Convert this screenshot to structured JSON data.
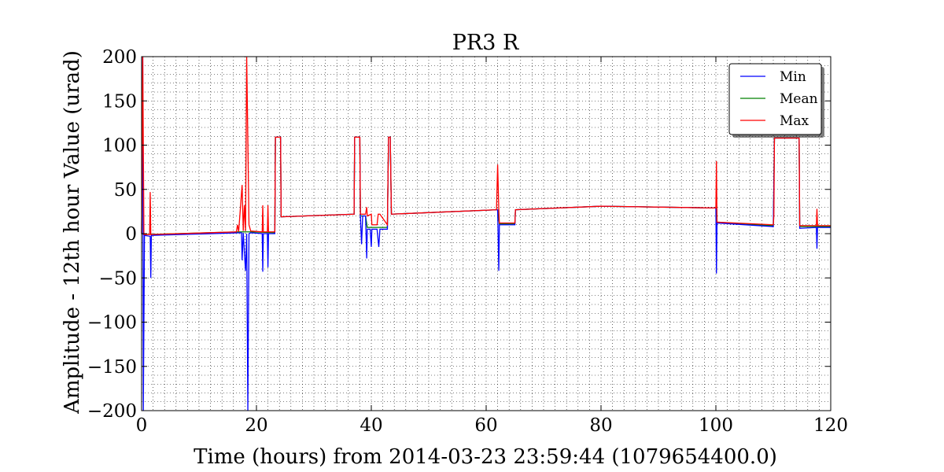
{
  "chart_data": {
    "type": "line",
    "title": "PR3 R",
    "xlabel": "Time (hours) from 2014-03-23 23:59:44 (1079654400.0)",
    "ylabel": "Amplitude - 12th hour Value (urad)",
    "xlim": [
      0,
      120
    ],
    "ylim": [
      -200,
      200
    ],
    "xticks": [
      0,
      20,
      40,
      60,
      80,
      100,
      120
    ],
    "yticks": [
      -200,
      -150,
      -100,
      -50,
      0,
      50,
      100,
      150,
      200
    ],
    "xtick_labels": [
      "0",
      "20",
      "40",
      "60",
      "80",
      "100",
      "120"
    ],
    "ytick_labels": [
      "−200",
      "−150",
      "−100",
      "−50",
      "0",
      "50",
      "100",
      "150",
      "200"
    ],
    "grid": true,
    "legend_position": "top-right",
    "series": [
      {
        "name": "Min",
        "color": "#0000ff",
        "points": [
          [
            0,
            0
          ],
          [
            0.2,
            200
          ],
          [
            0.3,
            -200
          ],
          [
            0.5,
            -2
          ],
          [
            1.5,
            -3
          ],
          [
            1.6,
            -50
          ],
          [
            1.7,
            -2
          ],
          [
            17.4,
            1
          ],
          [
            17.5,
            -30
          ],
          [
            17.7,
            1
          ],
          [
            17.9,
            -22
          ],
          [
            18.1,
            -42
          ],
          [
            18.3,
            0
          ],
          [
            18.5,
            -200
          ],
          [
            18.7,
            0
          ],
          [
            19,
            1
          ],
          [
            21,
            0
          ],
          [
            21.1,
            -43
          ],
          [
            21.2,
            0
          ],
          [
            21.9,
            0
          ],
          [
            22,
            -38
          ],
          [
            22.1,
            0
          ],
          [
            23.2,
            0
          ],
          [
            23.3,
            109
          ],
          [
            24.2,
            109
          ],
          [
            24.3,
            19
          ],
          [
            37,
            22
          ],
          [
            37.1,
            109
          ],
          [
            38,
            109
          ],
          [
            38.1,
            20
          ],
          [
            38.3,
            -12
          ],
          [
            38.5,
            20
          ],
          [
            39,
            20
          ],
          [
            39.2,
            -28
          ],
          [
            39.3,
            5
          ],
          [
            39.8,
            5
          ],
          [
            40,
            -15
          ],
          [
            40.1,
            5
          ],
          [
            41,
            5
          ],
          [
            41.3,
            -15
          ],
          [
            41.5,
            5
          ],
          [
            42.8,
            5
          ],
          [
            43,
            109
          ],
          [
            43.3,
            109
          ],
          [
            43.5,
            22
          ],
          [
            62,
            27
          ],
          [
            62.2,
            -42
          ],
          [
            62.3,
            10
          ],
          [
            65,
            10
          ],
          [
            65.1,
            27
          ],
          [
            80,
            31
          ],
          [
            100,
            29
          ],
          [
            100.1,
            -45
          ],
          [
            100.2,
            12
          ],
          [
            110,
            8
          ],
          [
            110.2,
            108
          ],
          [
            114.5,
            108
          ],
          [
            114.6,
            6
          ],
          [
            117.5,
            7
          ],
          [
            117.6,
            -17
          ],
          [
            117.7,
            7
          ],
          [
            120,
            7
          ]
        ]
      },
      {
        "name": "Mean",
        "color": "#008000",
        "points": [
          [
            0,
            0
          ],
          [
            0.5,
            -1
          ],
          [
            17,
            2
          ],
          [
            19,
            2
          ],
          [
            23.2,
            1
          ],
          [
            23.3,
            109
          ],
          [
            24.2,
            109
          ],
          [
            24.3,
            19
          ],
          [
            37,
            22
          ],
          [
            37.1,
            109
          ],
          [
            38,
            109
          ],
          [
            38.1,
            20
          ],
          [
            39,
            20
          ],
          [
            39.3,
            7
          ],
          [
            41,
            7
          ],
          [
            41.5,
            7
          ],
          [
            42.8,
            7
          ],
          [
            43,
            109
          ],
          [
            43.3,
            109
          ],
          [
            43.5,
            22
          ],
          [
            62,
            27
          ],
          [
            62.3,
            11
          ],
          [
            65,
            11
          ],
          [
            65.1,
            27
          ],
          [
            80,
            31
          ],
          [
            100,
            29
          ],
          [
            100.2,
            13
          ],
          [
            110,
            9
          ],
          [
            110.2,
            108
          ],
          [
            114.5,
            108
          ],
          [
            114.6,
            8
          ],
          [
            120,
            8
          ]
        ]
      },
      {
        "name": "Max",
        "color": "#ff0000",
        "points": [
          [
            0,
            0
          ],
          [
            0.2,
            200
          ],
          [
            0.4,
            -1
          ],
          [
            1.4,
            -1
          ],
          [
            1.5,
            47
          ],
          [
            1.6,
            -1
          ],
          [
            16.5,
            2
          ],
          [
            16.7,
            10
          ],
          [
            16.9,
            2
          ],
          [
            17.5,
            55
          ],
          [
            17.7,
            3
          ],
          [
            17.9,
            32
          ],
          [
            18.1,
            3
          ],
          [
            18.3,
            200
          ],
          [
            18.7,
            10
          ],
          [
            19,
            3
          ],
          [
            21,
            2
          ],
          [
            21.1,
            32
          ],
          [
            21.2,
            2
          ],
          [
            21.9,
            2
          ],
          [
            22,
            32
          ],
          [
            22.1,
            2
          ],
          [
            23.2,
            2
          ],
          [
            23.3,
            109
          ],
          [
            24.2,
            109
          ],
          [
            24.3,
            19
          ],
          [
            37,
            22
          ],
          [
            37.1,
            109
          ],
          [
            38,
            109
          ],
          [
            38.1,
            22
          ],
          [
            39,
            22
          ],
          [
            39.2,
            30
          ],
          [
            39.3,
            20
          ],
          [
            40,
            22
          ],
          [
            40.1,
            10
          ],
          [
            41,
            10
          ],
          [
            41.2,
            22
          ],
          [
            41.5,
            22
          ],
          [
            42.8,
            10
          ],
          [
            43,
            109
          ],
          [
            43.3,
            109
          ],
          [
            43.5,
            22
          ],
          [
            61.8,
            27
          ],
          [
            62,
            78
          ],
          [
            62.2,
            27
          ],
          [
            62.3,
            12
          ],
          [
            65,
            12
          ],
          [
            65.1,
            27
          ],
          [
            80,
            31
          ],
          [
            100,
            29
          ],
          [
            100.1,
            82
          ],
          [
            100.2,
            13
          ],
          [
            110,
            10
          ],
          [
            110.1,
            20
          ],
          [
            110.2,
            108
          ],
          [
            114.5,
            108
          ],
          [
            114.6,
            9
          ],
          [
            117.5,
            9
          ],
          [
            117.6,
            28
          ],
          [
            117.7,
            9
          ],
          [
            120,
            9
          ]
        ]
      }
    ]
  }
}
